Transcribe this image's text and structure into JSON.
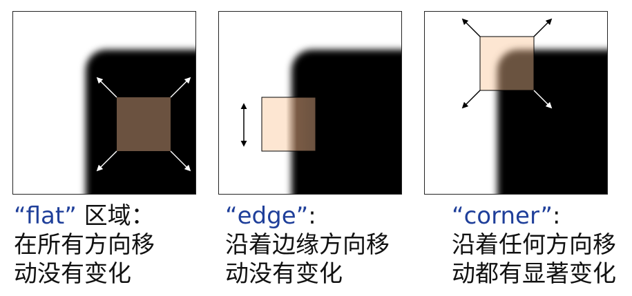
{
  "panels": [
    {
      "title": "“flat”",
      "title_suffix": " 区域：",
      "lines": [
        "在所有方向移",
        "动没有变化"
      ]
    },
    {
      "title": "“edge”",
      "title_suffix": ":",
      "lines": [
        "沿着边缘方向移",
        "动没有变化"
      ]
    },
    {
      "title": "“corner”",
      "title_suffix": ":",
      "lines": [
        "沿着任何方向移",
        "动都有显著变化"
      ]
    }
  ],
  "colors": {
    "title": "#1f3f9a",
    "window_dark": "#6b5240",
    "window_light": "#fde6d2",
    "object": "#000000"
  }
}
